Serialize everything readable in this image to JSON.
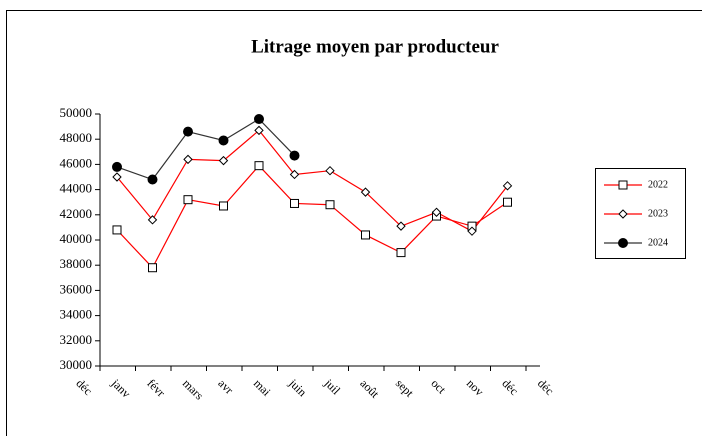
{
  "chart_data": {
    "type": "line",
    "title": "Litrage moyen par producteur",
    "categories": [
      "déc",
      "janv",
      "févr",
      "mars",
      "avr",
      "mai",
      "juin",
      "juil",
      "août",
      "sept",
      "oct",
      "nov",
      "déc",
      "déc"
    ],
    "series": [
      {
        "name": "2022",
        "color": "#ff0000",
        "marker": "square",
        "values": [
          null,
          40800,
          37800,
          43200,
          42700,
          45900,
          42900,
          42800,
          40400,
          39000,
          41900,
          41100,
          43000,
          null
        ]
      },
      {
        "name": "2023",
        "color": "#ff0000",
        "marker": "diamond",
        "values": [
          null,
          45000,
          41600,
          46400,
          46300,
          48700,
          45200,
          45500,
          43800,
          41100,
          42200,
          40700,
          44300,
          null
        ]
      },
      {
        "name": "2024",
        "color": "#333333",
        "marker": "circle",
        "values": [
          null,
          45800,
          44800,
          48600,
          47900,
          49600,
          46700,
          null,
          null,
          null,
          null,
          null,
          null,
          null
        ]
      }
    ],
    "ylim": [
      30000,
      50000
    ],
    "yticks": [
      30000,
      32000,
      34000,
      36000,
      38000,
      40000,
      42000,
      44000,
      46000,
      48000,
      50000
    ],
    "legend": "right"
  }
}
